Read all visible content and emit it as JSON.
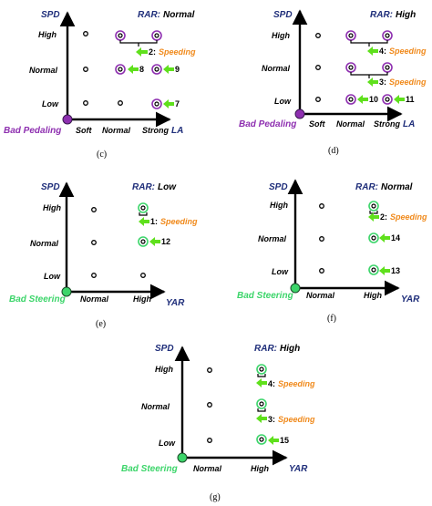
{
  "colors": {
    "axis": "#000000",
    "axis_label": "#1f2e7a",
    "pedal_origin": "#8e2fb0",
    "steer_origin": "#3cd56a",
    "speeding": "#f08a1c",
    "arrow": "#5fe01c"
  },
  "panels": {
    "c": {
      "caption": "(c)",
      "y_title": "SPD",
      "rar_prefix": "RAR:",
      "rar_value": "Normal",
      "y_ticks": [
        "High",
        "Normal",
        "Low"
      ],
      "x_ticks": [
        "Soft",
        "Normal",
        "Strong"
      ],
      "x_title": "LA",
      "origin_label": "Bad Pedaling",
      "annotations": [
        {
          "num": "2:",
          "text": "Speeding"
        },
        {
          "num": "8"
        },
        {
          "num": "9"
        },
        {
          "num": "7"
        }
      ]
    },
    "d": {
      "caption": "(d)",
      "y_title": "SPD",
      "rar_prefix": "RAR:",
      "rar_value": "High",
      "y_ticks": [
        "High",
        "Normal",
        "Low"
      ],
      "x_ticks": [
        "Soft",
        "Normal",
        "Strong"
      ],
      "x_title": "LA",
      "origin_label": "Bad Pedaling",
      "annotations": [
        {
          "num": "4:",
          "text": "Speeding"
        },
        {
          "num": "3:",
          "text": "Speeding"
        },
        {
          "num": "10"
        },
        {
          "num": "11"
        }
      ]
    },
    "e": {
      "caption": "(e)",
      "y_title": "SPD",
      "rar_prefix": "RAR:",
      "rar_value": "Low",
      "y_ticks": [
        "High",
        "Normal",
        "Low"
      ],
      "x_ticks": [
        "Normal",
        "High"
      ],
      "x_title": "YAR",
      "origin_label": "Bad Steering",
      "annotations": [
        {
          "num": "1:",
          "text": "Speeding"
        },
        {
          "num": "12"
        }
      ]
    },
    "f": {
      "caption": "(f)",
      "y_title": "SPD",
      "rar_prefix": "RAR:",
      "rar_value": "Normal",
      "y_ticks": [
        "High",
        "Normal",
        "Low"
      ],
      "x_ticks": [
        "Normal",
        "High"
      ],
      "x_title": "YAR",
      "origin_label": "Bad Steering",
      "annotations": [
        {
          "num": "2:",
          "text": "Speeding"
        },
        {
          "num": "14"
        },
        {
          "num": "13"
        }
      ]
    },
    "g": {
      "caption": "(g)",
      "y_title": "SPD",
      "rar_prefix": "RAR:",
      "rar_value": "High",
      "y_ticks": [
        "High",
        "Normal",
        "Low"
      ],
      "x_ticks": [
        "Normal",
        "High"
      ],
      "x_title": "YAR",
      "origin_label": "Bad Steering",
      "annotations": [
        {
          "num": "4:",
          "text": "Speeding"
        },
        {
          "num": "3:",
          "text": "Speeding"
        },
        {
          "num": "15"
        }
      ]
    }
  }
}
